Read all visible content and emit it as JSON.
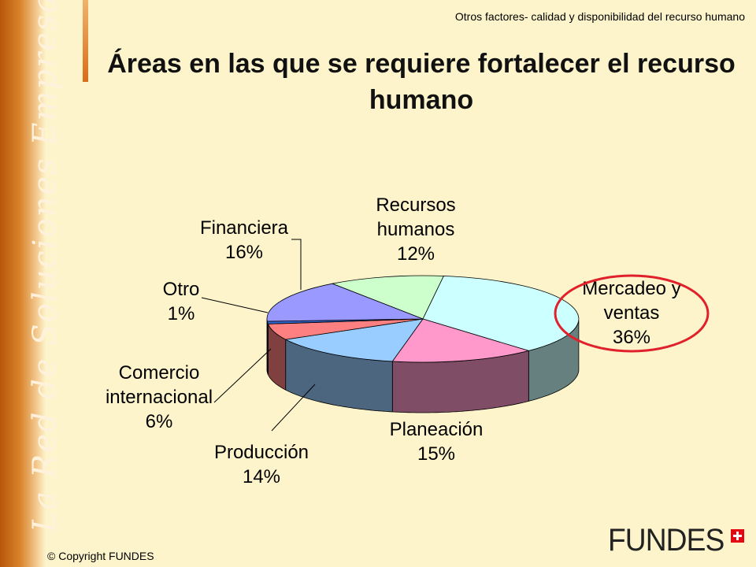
{
  "side_text": "La Red de Soluciones Empresariales",
  "section_title": "Otros factores- calidad y disponibilidad del recurso humano",
  "copyright": "© Copyright FUNDES",
  "logo": "FUNDES",
  "chart_data": {
    "type": "pie",
    "title": "Áreas en las que se requiere fortalecer el recurso humano",
    "slices": [
      {
        "label": [
          "Recursos",
          "humanos"
        ],
        "value": 12,
        "value_label": "12%",
        "color": "#ccffcc"
      },
      {
        "label": [
          "Mercadeo y",
          "ventas"
        ],
        "value": 36,
        "value_label": "36%",
        "color": "#ccffff"
      },
      {
        "label": [
          "Planeación"
        ],
        "value": 15,
        "value_label": "15%",
        "color": "#ff99cc"
      },
      {
        "label": [
          "Producción"
        ],
        "value": 14,
        "value_label": "14%",
        "color": "#99ccff"
      },
      {
        "label": [
          "Comercio",
          "internacional"
        ],
        "value": 6,
        "value_label": "6%",
        "color": "#ff8080"
      },
      {
        "label": [
          "Otro"
        ],
        "value": 1,
        "value_label": "1%",
        "color": "#3366cc"
      },
      {
        "label": [
          "Financiera"
        ],
        "value": 16,
        "value_label": "16%",
        "color": "#9999ff"
      }
    ],
    "highlight": "Mercadeo y ventas",
    "highlight_color": "#e0202a",
    "three_d": true,
    "legend": "none"
  }
}
